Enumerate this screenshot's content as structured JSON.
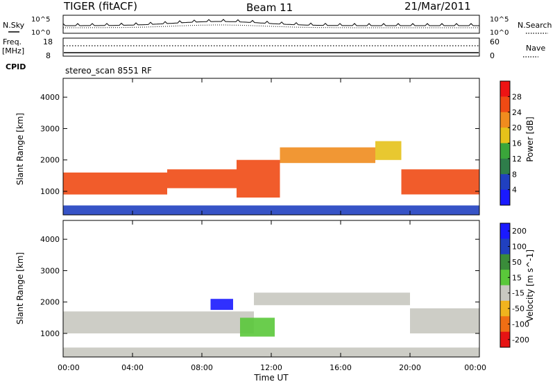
{
  "header": {
    "station": "TIGER (fitACF)",
    "beam": "Beam 11",
    "date": "21/Mar/2011"
  },
  "top_panels": {
    "nsky": {
      "left_label": "N.Sky",
      "left_ticks": [
        "10^5",
        "10^0"
      ],
      "right_label": "N.Search",
      "right_ticks": [
        "10^5",
        "10^0"
      ]
    },
    "freq": {
      "left_label_line1": "Freq.",
      "left_label_line2": "[MHz]",
      "left_ticks": [
        "18",
        "8"
      ],
      "right_label": "Nave",
      "right_ticks": [
        "60",
        "0"
      ]
    },
    "cpid": {
      "label": "CPID",
      "value": "stereo_scan 8551 RF"
    }
  },
  "colors": {
    "power_scale": [
      "#1a1aff",
      "#2040c0",
      "#2e7d4a",
      "#3aa63a",
      "#e6c21a",
      "#f08c1e",
      "#f04a14",
      "#ee1414"
    ],
    "velocity_scale": [
      "#1a1aff",
      "#2040c0",
      "#3a8c3a",
      "#5ac83a",
      "#c8c8c0",
      "#f0b41e",
      "#f06e14",
      "#e61414"
    ],
    "ground_scatter": "#c8c8c0"
  },
  "chart_data": [
    {
      "type": "heatmap",
      "panel": "power",
      "ylabel": "Slant Range [km]",
      "xlabel": "",
      "ylim": [
        250,
        4600
      ],
      "xlim": [
        0,
        24
      ],
      "y_ticks": [
        "1000",
        "2000",
        "3000",
        "4000"
      ],
      "x_ticks": [
        "00:00",
        "04:00",
        "08:00",
        "12:00",
        "16:00",
        "20:00",
        "00:00"
      ],
      "colorbar": {
        "label": "Power [dB]",
        "ticks": [
          "4",
          "8",
          "12",
          "16",
          "20",
          "24",
          "28"
        ],
        "range": [
          0,
          32
        ]
      },
      "bands": [
        {
          "t0": 0.0,
          "t1": 6.0,
          "r0": 900,
          "r1": 1600,
          "level": 26
        },
        {
          "t0": 6.0,
          "t1": 10.0,
          "r0": 1100,
          "r1": 1700,
          "level": 24
        },
        {
          "t0": 10.0,
          "t1": 12.5,
          "r0": 800,
          "r1": 2000,
          "level": 26
        },
        {
          "t0": 12.5,
          "t1": 18.0,
          "r0": 1900,
          "r1": 2400,
          "level": 20
        },
        {
          "t0": 18.0,
          "t1": 19.5,
          "r0": 2000,
          "r1": 2600,
          "level": 18
        },
        {
          "t0": 19.5,
          "t1": 24.0,
          "r0": 900,
          "r1": 1700,
          "level": 26
        },
        {
          "t0": 0.0,
          "t1": 24.0,
          "r0": 250,
          "r1": 550,
          "level": 6
        }
      ]
    },
    {
      "type": "heatmap",
      "panel": "velocity",
      "ylabel": "Slant Range [km]",
      "xlabel": "Time UT",
      "ylim": [
        250,
        4600
      ],
      "xlim": [
        0,
        24
      ],
      "y_ticks": [
        "1000",
        "2000",
        "3000",
        "4000"
      ],
      "x_ticks": [
        "00:00",
        "04:00",
        "08:00",
        "12:00",
        "16:00",
        "20:00",
        "00:00"
      ],
      "colorbar": {
        "label": "Velocity [m s^-1]",
        "ticks": [
          "200",
          "100",
          "50",
          "15",
          "-15",
          "-50",
          "-100",
          "-200"
        ],
        "range": [
          -250,
          250
        ]
      },
      "bands": [
        {
          "t0": 0.0,
          "t1": 11.0,
          "r0": 1000,
          "r1": 1700,
          "level": 0,
          "ground": true
        },
        {
          "t0": 11.0,
          "t1": 20.0,
          "r0": 1900,
          "r1": 2300,
          "level": 0,
          "ground": true
        },
        {
          "t0": 20.0,
          "t1": 24.0,
          "r0": 1000,
          "r1": 1800,
          "level": 0,
          "ground": true
        },
        {
          "t0": 8.5,
          "t1": 9.8,
          "r0": 1750,
          "r1": 2100,
          "level": 220
        },
        {
          "t0": 10.2,
          "t1": 12.2,
          "r0": 900,
          "r1": 1500,
          "level": 60
        },
        {
          "t0": 0.0,
          "t1": 24.0,
          "r0": 250,
          "r1": 550,
          "level": -40
        }
      ]
    }
  ]
}
